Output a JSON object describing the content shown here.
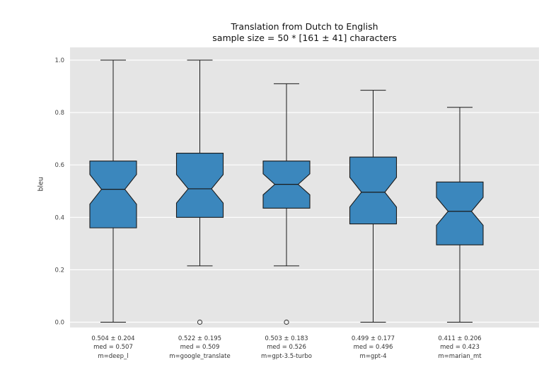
{
  "chart_data": {
    "type": "boxplot",
    "title": "Translation from Dutch to English",
    "subtitle": "sample size = 50 * [161 ± 41] characters",
    "ylabel": "bleu",
    "ylim": [
      -0.03,
      1.05
    ],
    "yticks": [
      0.0,
      0.2,
      0.4,
      0.6,
      0.8,
      1.0
    ],
    "sample_size": 50,
    "grid": "horizontal white gridlines on gray panel",
    "legend_position": "none",
    "groups": [
      {
        "model": "deep_l",
        "label_lines": [
          "0.504 ± 0.204",
          "med = 0.507",
          "m=deep_l"
        ],
        "mean": 0.504,
        "std": 0.204,
        "median": 0.507,
        "q1": 0.36,
        "q3": 0.615,
        "whisker_low": 0.0,
        "whisker_high": 1.0,
        "outliers": []
      },
      {
        "model": "google_translate",
        "label_lines": [
          "0.522 ± 0.195",
          "med = 0.509",
          "m=google_translate"
        ],
        "mean": 0.522,
        "std": 0.195,
        "median": 0.509,
        "q1": 0.4,
        "q3": 0.645,
        "whisker_low": 0.215,
        "whisker_high": 1.0,
        "outliers": [
          0.0
        ]
      },
      {
        "model": "gpt-3.5-turbo",
        "label_lines": [
          "0.503 ± 0.183",
          "med = 0.526",
          "m=gpt-3.5-turbo"
        ],
        "mean": 0.503,
        "std": 0.183,
        "median": 0.526,
        "q1": 0.435,
        "q3": 0.615,
        "whisker_low": 0.215,
        "whisker_high": 0.91,
        "outliers": [
          0.0
        ]
      },
      {
        "model": "gpt-4",
        "label_lines": [
          "0.499 ± 0.177",
          "med = 0.496",
          "m=gpt-4"
        ],
        "mean": 0.499,
        "std": 0.177,
        "median": 0.496,
        "q1": 0.375,
        "q3": 0.63,
        "whisker_low": 0.0,
        "whisker_high": 0.885,
        "outliers": []
      },
      {
        "model": "marian_mt",
        "label_lines": [
          "0.411 ± 0.206",
          "med = 0.423",
          "m=marian_mt"
        ],
        "mean": 0.411,
        "std": 0.206,
        "median": 0.423,
        "q1": 0.295,
        "q3": 0.535,
        "whisker_low": 0.0,
        "whisker_high": 0.82,
        "outliers": []
      }
    ],
    "colors": {
      "box_fill": "#3b87bd",
      "box_edge": "#1a1a1a",
      "plot_bg": "#e5e5e5",
      "grid": "#ffffff",
      "fig_bg": "#ffffff",
      "tick_text": "#444444"
    }
  }
}
